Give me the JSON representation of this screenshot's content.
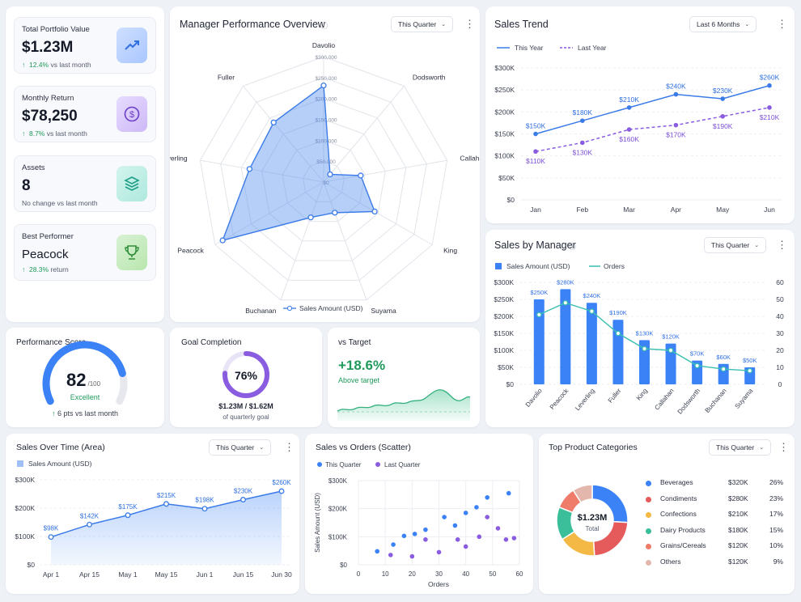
{
  "kpis": [
    {
      "label": "Total Portfolio Value",
      "value": "$1.23M",
      "change": "12.4%",
      "note": "vs last month",
      "icon": "trend-up-icon"
    },
    {
      "label": "Monthly Return",
      "value": "$78,250",
      "change": "8.7%",
      "note": "vs last month",
      "icon": "dollar-icon"
    },
    {
      "label": "Assets",
      "value": "8",
      "change": "",
      "note": "No change vs last month",
      "icon": "layers-icon"
    },
    {
      "label": "Best Performer",
      "value": "Peacock",
      "change": "28.3%",
      "note": "return",
      "icon": "trophy-icon"
    }
  ],
  "radar": {
    "title": "Manager Performance Overview",
    "filter": "This Quarter",
    "axes": [
      "Davolio",
      "Dodsworth",
      "Callahan",
      "King",
      "Suyama",
      "Buchanan",
      "Peacock",
      "Leverling",
      "Fuller"
    ],
    "ticks": [
      "$300,000",
      "$250,000",
      "$200,000",
      "$150,000",
      "$100,000",
      "$50,000",
      "$0"
    ],
    "legend": "Sales Amount (USD)"
  },
  "sales_trend": {
    "title": "Sales Trend",
    "filter": "Last 6 Months",
    "legend_this": "This Year",
    "legend_last": "Last Year",
    "months": [
      "Jan",
      "Feb",
      "Mar",
      "Apr",
      "May",
      "Jun"
    ],
    "this_year": [
      150,
      180,
      210,
      240,
      230,
      260
    ],
    "last_year": [
      110,
      130,
      160,
      170,
      190,
      210
    ],
    "y_ticks": [
      "$300K",
      "$250K",
      "$200K",
      "$150K",
      "$100K",
      "$50K",
      "$0"
    ]
  },
  "sales_by_manager": {
    "title": "Sales by Manager",
    "filter": "This Quarter",
    "legend_bar": "Sales Amount (USD)",
    "legend_line": "Orders",
    "managers": [
      "Davolio",
      "Peacock",
      "Leverling",
      "Fuller",
      "King",
      "Callahan",
      "Dodsworth",
      "Buchanan",
      "Suyama"
    ],
    "sales": [
      250,
      280,
      240,
      190,
      130,
      120,
      70,
      60,
      50
    ],
    "orders": [
      41,
      48,
      43,
      30,
      21,
      20,
      11,
      9,
      8
    ],
    "y_left": [
      "$300K",
      "$250K",
      "$200K",
      "$150K",
      "$100K",
      "$50K",
      "$0"
    ],
    "y_right": [
      "60",
      "50",
      "40",
      "30",
      "20",
      "10",
      "0"
    ]
  },
  "performance": {
    "title": "Performance Score",
    "score": "82",
    "max": "/100",
    "rating": "Excellent",
    "change": "6 pts vs last month",
    "value": 0.82
  },
  "goal": {
    "title": "Goal Completion",
    "percent": "76%",
    "amount": "$1.23M / $1.62M",
    "note": "of quarterly goal",
    "value": 0.76
  },
  "vs_target": {
    "title": "vs Target",
    "value": "+18.6%",
    "note": "Above target"
  },
  "area": {
    "title": "Sales Over Time (Area)",
    "filter": "This Quarter",
    "legend": "Sales Amount (USD)",
    "x": [
      "Apr 1",
      "Apr 15",
      "May 1",
      "May 15",
      "Jun 1",
      "Jun 15",
      "Jun 30"
    ],
    "values": [
      98,
      142,
      175,
      215,
      198,
      230,
      260
    ],
    "y_ticks": [
      "$300K",
      "$200K",
      "$100K",
      "$0"
    ]
  },
  "scatter": {
    "title": "Sales vs Orders (Scatter)",
    "legend_this": "This Quarter",
    "legend_last": "Last Quarter",
    "xlabel": "Orders",
    "ylabel": "Sales Amount (USD)",
    "x_ticks": [
      "0",
      "10",
      "20",
      "30",
      "40",
      "50",
      "60"
    ],
    "y_ticks": [
      "$300K",
      "$200K",
      "$100K",
      "$0"
    ],
    "this_q": [
      [
        7,
        48
      ],
      [
        13,
        72
      ],
      [
        17,
        103
      ],
      [
        21,
        110
      ],
      [
        25,
        125
      ],
      [
        32,
        170
      ],
      [
        36,
        140
      ],
      [
        40,
        185
      ],
      [
        44,
        205
      ],
      [
        48,
        240
      ],
      [
        56,
        255
      ]
    ],
    "last_q": [
      [
        12,
        35
      ],
      [
        20,
        30
      ],
      [
        25,
        90
      ],
      [
        30,
        45
      ],
      [
        37,
        90
      ],
      [
        40,
        65
      ],
      [
        45,
        100
      ],
      [
        48,
        170
      ],
      [
        52,
        130
      ],
      [
        55,
        90
      ],
      [
        58,
        95
      ]
    ]
  },
  "categories": {
    "title": "Top Product Categories",
    "filter": "This Quarter",
    "total": "$1.23M",
    "total_label": "Total",
    "items": [
      {
        "name": "Beverages",
        "amount": "$320K",
        "pct": "26%",
        "share": 26,
        "color": "#3b82f6"
      },
      {
        "name": "Condiments",
        "amount": "$280K",
        "pct": "23%",
        "share": 23,
        "color": "#e55b5b"
      },
      {
        "name": "Confections",
        "amount": "$210K",
        "pct": "17%",
        "share": 17,
        "color": "#f4b844"
      },
      {
        "name": "Dairy Products",
        "amount": "$180K",
        "pct": "15%",
        "share": 15,
        "color": "#3bbf9a"
      },
      {
        "name": "Grains/Cereals",
        "amount": "$120K",
        "pct": "10%",
        "share": 10,
        "color": "#ef7b6b"
      },
      {
        "name": "Others",
        "amount": "$120K",
        "pct": "9%",
        "share": 9,
        "color": "#e4b7ac"
      }
    ]
  }
}
